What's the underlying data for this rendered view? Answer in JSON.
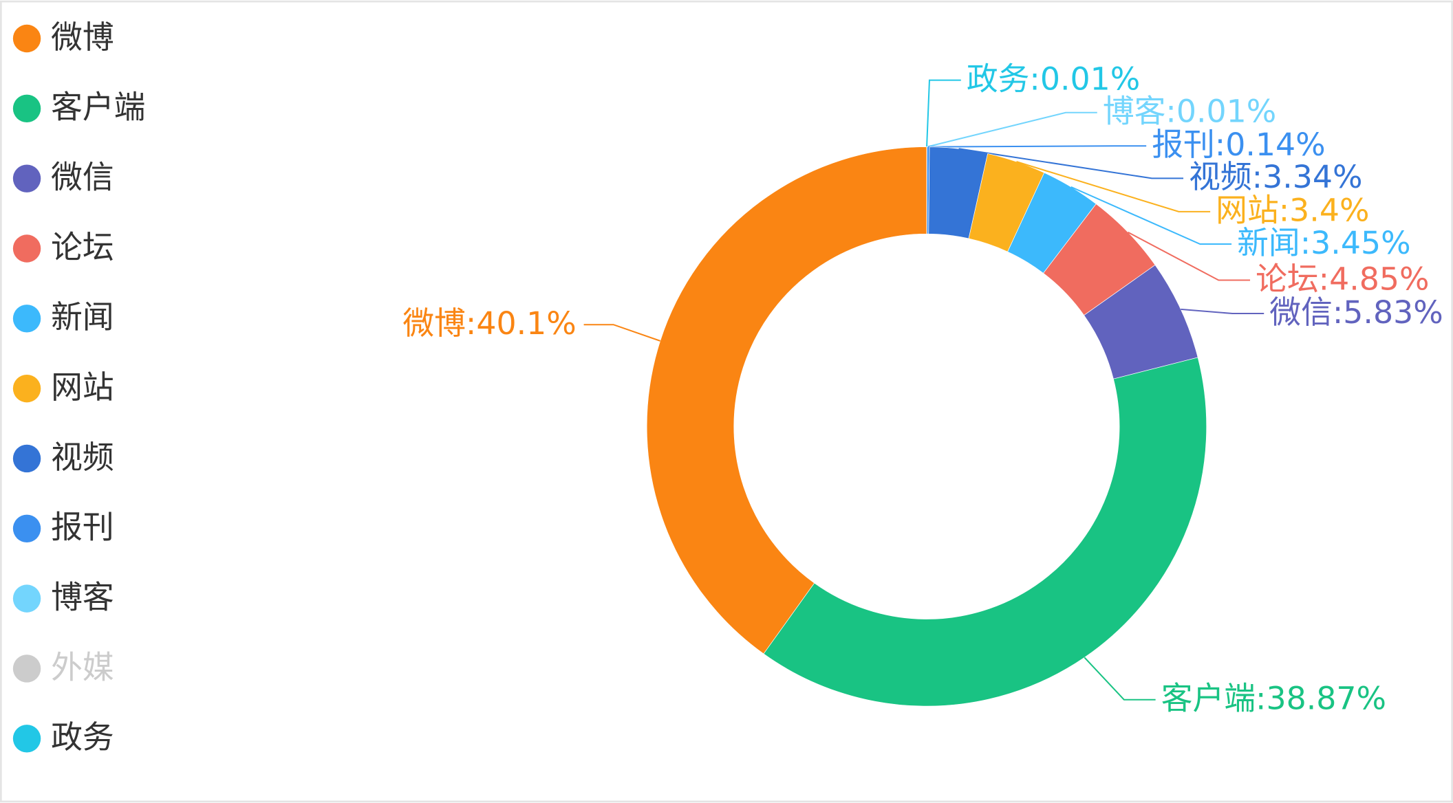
{
  "chart_data": {
    "type": "donut",
    "categories": [
      "微博",
      "客户端",
      "微信",
      "论坛",
      "新闻",
      "网站",
      "视频",
      "报刊",
      "博客",
      "外媒",
      "政务"
    ],
    "colors": [
      "#fa8513",
      "#19c383",
      "#6163be",
      "#f06c5f",
      "#3cb9fc",
      "#fbb11e",
      "#3474d6",
      "#3b90f0",
      "#73d5fd",
      "#cccccc",
      "#22c7e6"
    ],
    "values": [
      40.1,
      38.87,
      5.83,
      4.85,
      3.45,
      3.4,
      3.34,
      0.14,
      0.01,
      null,
      0.01
    ],
    "value_labels": [
      "微博:40.1%",
      "客户端:38.87%",
      "微信:5.83%",
      "论坛:4.85%",
      "新闻:3.45%",
      "网站:3.4%",
      "视频:3.34%",
      "报刊:0.14%",
      "博客:0.01%",
      null,
      "政务:0.01%"
    ],
    "hidden": [
      false,
      false,
      false,
      false,
      false,
      false,
      false,
      false,
      false,
      true,
      false
    ],
    "legend": "left"
  }
}
